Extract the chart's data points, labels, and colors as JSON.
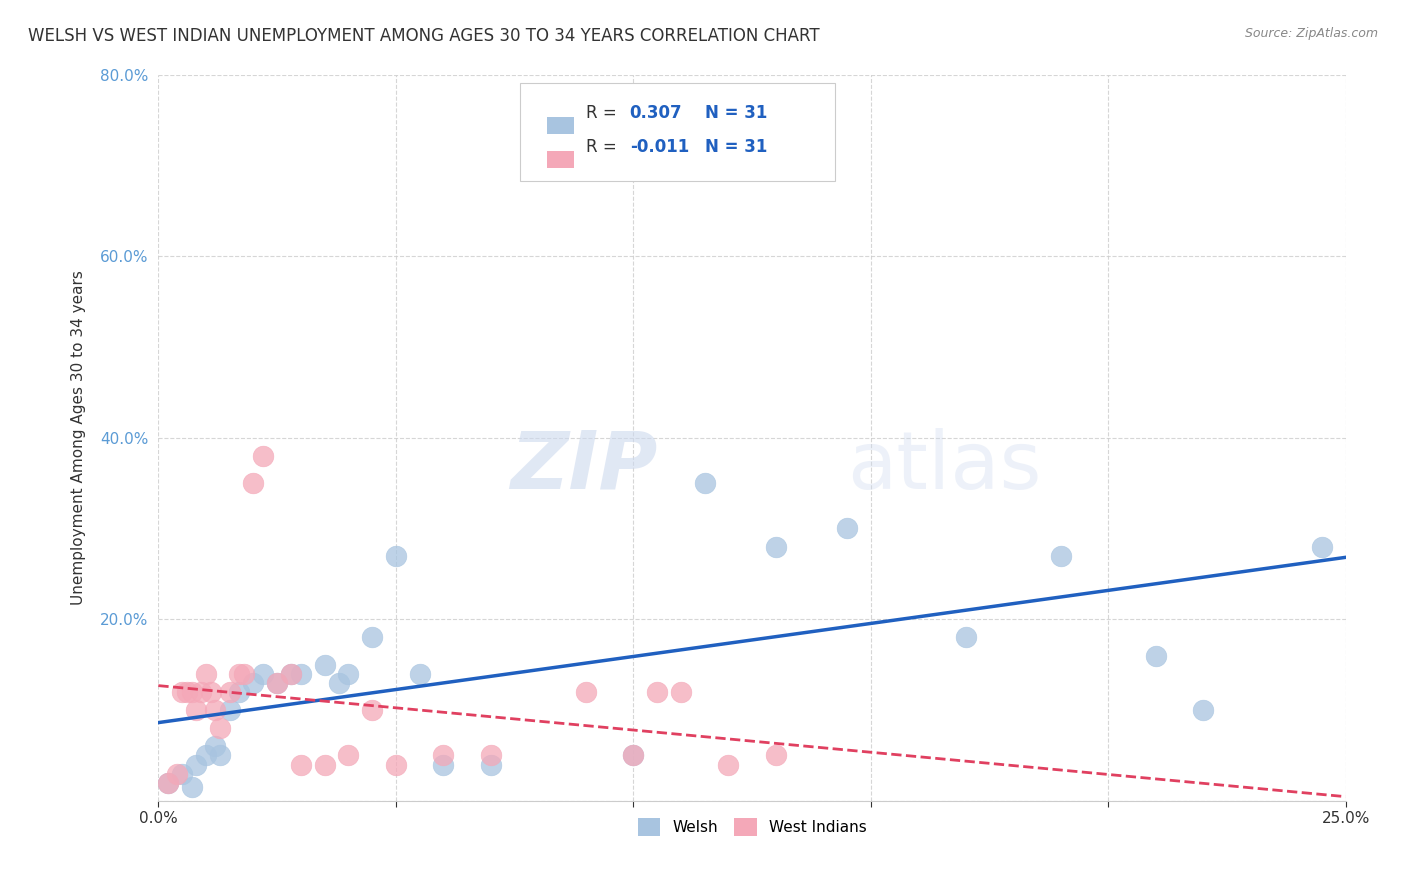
{
  "title": "WELSH VS WEST INDIAN UNEMPLOYMENT AMONG AGES 30 TO 34 YEARS CORRELATION CHART",
  "source": "Source: ZipAtlas.com",
  "ylabel": "Unemployment Among Ages 30 to 34 years",
  "xlim": [
    0.0,
    0.25
  ],
  "ylim": [
    0.0,
    0.8
  ],
  "xticks": [
    0.0,
    0.05,
    0.1,
    0.15,
    0.2,
    0.25
  ],
  "yticks": [
    0.0,
    0.2,
    0.4,
    0.6,
    0.8
  ],
  "welsh_R": 0.307,
  "welsh_N": 31,
  "wi_R": -0.011,
  "wi_N": 31,
  "welsh_color": "#a8c4e0",
  "wi_color": "#f4a8b8",
  "welsh_line_color": "#2060c0",
  "wi_line_color": "#e04060",
  "welsh_points": [
    [
      0.002,
      0.02
    ],
    [
      0.005,
      0.03
    ],
    [
      0.007,
      0.015
    ],
    [
      0.008,
      0.04
    ],
    [
      0.01,
      0.05
    ],
    [
      0.012,
      0.06
    ],
    [
      0.013,
      0.05
    ],
    [
      0.015,
      0.1
    ],
    [
      0.017,
      0.12
    ],
    [
      0.02,
      0.13
    ],
    [
      0.022,
      0.14
    ],
    [
      0.025,
      0.13
    ],
    [
      0.028,
      0.14
    ],
    [
      0.03,
      0.14
    ],
    [
      0.035,
      0.15
    ],
    [
      0.038,
      0.13
    ],
    [
      0.04,
      0.14
    ],
    [
      0.045,
      0.18
    ],
    [
      0.05,
      0.27
    ],
    [
      0.055,
      0.14
    ],
    [
      0.06,
      0.04
    ],
    [
      0.07,
      0.04
    ],
    [
      0.1,
      0.05
    ],
    [
      0.115,
      0.35
    ],
    [
      0.13,
      0.28
    ],
    [
      0.145,
      0.3
    ],
    [
      0.17,
      0.18
    ],
    [
      0.19,
      0.27
    ],
    [
      0.21,
      0.16
    ],
    [
      0.22,
      0.1
    ],
    [
      0.245,
      0.28
    ]
  ],
  "wi_points": [
    [
      0.002,
      0.02
    ],
    [
      0.004,
      0.03
    ],
    [
      0.005,
      0.12
    ],
    [
      0.006,
      0.12
    ],
    [
      0.007,
      0.12
    ],
    [
      0.008,
      0.1
    ],
    [
      0.009,
      0.12
    ],
    [
      0.01,
      0.14
    ],
    [
      0.011,
      0.12
    ],
    [
      0.012,
      0.1
    ],
    [
      0.013,
      0.08
    ],
    [
      0.015,
      0.12
    ],
    [
      0.017,
      0.14
    ],
    [
      0.018,
      0.14
    ],
    [
      0.02,
      0.35
    ],
    [
      0.022,
      0.38
    ],
    [
      0.025,
      0.13
    ],
    [
      0.028,
      0.14
    ],
    [
      0.03,
      0.04
    ],
    [
      0.035,
      0.04
    ],
    [
      0.04,
      0.05
    ],
    [
      0.045,
      0.1
    ],
    [
      0.05,
      0.04
    ],
    [
      0.06,
      0.05
    ],
    [
      0.07,
      0.05
    ],
    [
      0.09,
      0.12
    ],
    [
      0.1,
      0.05
    ],
    [
      0.105,
      0.12
    ],
    [
      0.11,
      0.12
    ],
    [
      0.12,
      0.04
    ],
    [
      0.13,
      0.05
    ]
  ],
  "watermark_zip": "ZIP",
  "watermark_atlas": "atlas",
  "welsh_label": "Welsh",
  "wi_label": "West Indians",
  "background_color": "#ffffff",
  "grid_color": "#cccccc"
}
